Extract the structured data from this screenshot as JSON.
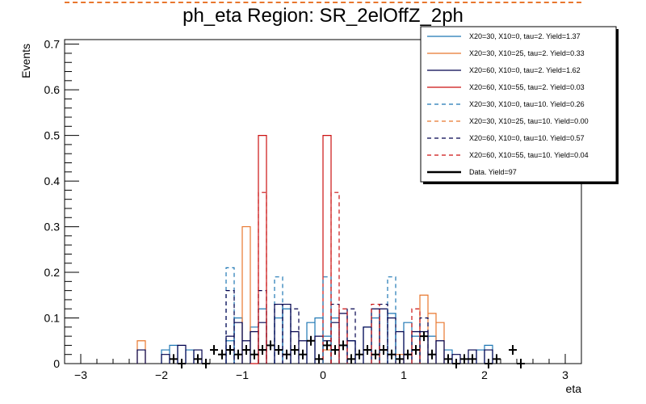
{
  "chart_data": {
    "type": "histogram-step",
    "title": "ph_eta Region: SR_2elOffZ_2ph",
    "xlabel": "eta",
    "ylabel": "Events",
    "xlim": [
      -3.2,
      3.2
    ],
    "ylim": [
      0,
      0.71
    ],
    "xticks": [
      -3,
      -2,
      -1,
      0,
      1,
      2,
      3
    ],
    "yticks": [
      0,
      0.1,
      0.2,
      0.3,
      0.4,
      0.5,
      0.6,
      0.7
    ],
    "ytick_labels": [
      "0",
      "0.1",
      "0.2",
      "0.3",
      "0.4",
      "0.5",
      "0.6",
      "0.7"
    ],
    "bin_width": 0.1,
    "legend_position": "top-right",
    "series": [
      {
        "name": "X20=30, X10=0, tau=2. Yield=1.37",
        "color": "#1f77b4",
        "dash": "solid",
        "bins": [
          [
            -2.0,
            0.03
          ],
          [
            -1.9,
            0.04
          ],
          [
            -1.7,
            0.03
          ],
          [
            -1.2,
            0.05
          ],
          [
            -1.1,
            0.1
          ],
          [
            -0.9,
            0.08
          ],
          [
            -0.8,
            0.12
          ],
          [
            -0.6,
            0.1
          ],
          [
            -0.5,
            0.12
          ],
          [
            -0.2,
            0.09
          ],
          [
            -0.1,
            0.1
          ],
          [
            0.0,
            0.06
          ],
          [
            0.1,
            0.1
          ],
          [
            0.3,
            0.05
          ],
          [
            0.5,
            0.08
          ],
          [
            0.6,
            0.1
          ],
          [
            0.8,
            0.11
          ],
          [
            1.0,
            0.09
          ],
          [
            1.1,
            0.06
          ],
          [
            1.3,
            0.06
          ],
          [
            1.5,
            0.03
          ],
          [
            1.9,
            0.03
          ],
          [
            2.0,
            0.04
          ]
        ]
      },
      {
        "name": "X20=30, X10=25, tau=2. Yield=0.33",
        "color": "#e8772e",
        "dash": "solid",
        "bins": [
          [
            -2.3,
            0.05
          ],
          [
            -1.0,
            0.3
          ],
          [
            -0.9,
            0.02
          ],
          [
            0.0,
            0.03
          ],
          [
            0.9,
            0.02
          ],
          [
            1.2,
            0.15
          ],
          [
            1.3,
            0.11
          ],
          [
            1.4,
            0.09
          ]
        ]
      },
      {
        "name": "X20=60, X10=0, tau=2. Yield=1.62",
        "color": "#00004d",
        "dash": "solid",
        "bins": [
          [
            -2.3,
            0.03
          ],
          [
            -2.0,
            0.02
          ],
          [
            -1.8,
            0.04
          ],
          [
            -1.6,
            0.03
          ],
          [
            -1.2,
            0.06
          ],
          [
            -1.1,
            0.09
          ],
          [
            -1.0,
            0.05
          ],
          [
            -0.9,
            0.07
          ],
          [
            -0.8,
            0.09
          ],
          [
            -0.6,
            0.13
          ],
          [
            -0.5,
            0.13
          ],
          [
            -0.4,
            0.07
          ],
          [
            -0.3,
            0.05
          ],
          [
            -0.1,
            0.06
          ],
          [
            0.0,
            0.05
          ],
          [
            0.1,
            0.09
          ],
          [
            0.2,
            0.11
          ],
          [
            0.3,
            0.05
          ],
          [
            0.5,
            0.08
          ],
          [
            0.6,
            0.12
          ],
          [
            0.7,
            0.12
          ],
          [
            0.8,
            0.1
          ],
          [
            0.9,
            0.07
          ],
          [
            1.1,
            0.07
          ],
          [
            1.2,
            0.07
          ],
          [
            1.4,
            0.05
          ],
          [
            1.6,
            0.02
          ],
          [
            1.8,
            0.03
          ],
          [
            2.0,
            0.03
          ]
        ]
      },
      {
        "name": "X20=60, X10=55, tau=2. Yield=0.03",
        "color": "#cc1111",
        "dash": "solid",
        "bins": [
          [
            -0.9,
            0.0
          ],
          [
            -0.8,
            0.5
          ],
          [
            0.0,
            0.5
          ]
        ]
      },
      {
        "name": "X20=30, X10=0, tau=10. Yield=0.26",
        "color": "#1f77b4",
        "dash": "dashed",
        "bins": [
          [
            -1.2,
            0.21
          ],
          [
            -0.6,
            0.19
          ],
          [
            0.0,
            0.19
          ],
          [
            0.8,
            0.19
          ]
        ]
      },
      {
        "name": "X20=30, X10=25, tau=10. Yield=0.00",
        "color": "#e8772e",
        "dash": "dashed",
        "bins": []
      },
      {
        "name": "X20=60, X10=0, tau=10. Yield=0.57",
        "color": "#00004d",
        "dash": "dashed",
        "bins": [
          [
            -1.2,
            0.16
          ],
          [
            -0.8,
            0.16
          ],
          [
            -0.6,
            0.13
          ],
          [
            -0.4,
            0.12
          ],
          [
            0.1,
            0.13
          ],
          [
            0.3,
            0.12
          ],
          [
            0.7,
            0.13
          ],
          [
            1.2,
            0.1
          ]
        ]
      },
      {
        "name": "X20=60, X10=55, tau=10. Yield=0.04",
        "color": "#cc1111",
        "dash": "dashed",
        "bins": [
          [
            -0.8,
            0.375
          ],
          [
            0.1,
            0.375
          ],
          [
            0.2,
            0.12
          ],
          [
            0.6,
            0.13
          ],
          [
            1.1,
            0.12
          ]
        ]
      }
    ],
    "data_series": {
      "name": "Data. Yield=97",
      "color": "#000000",
      "points": [
        [
          -1.85,
          0.01
        ],
        [
          -1.75,
          0.0
        ],
        [
          -1.55,
          0.01
        ],
        [
          -1.45,
          0.0
        ],
        [
          -1.35,
          0.03
        ],
        [
          -1.25,
          0.02
        ],
        [
          -1.15,
          0.03
        ],
        [
          -1.05,
          0.02
        ],
        [
          -0.95,
          0.03
        ],
        [
          -0.85,
          0.02
        ],
        [
          -0.75,
          0.03
        ],
        [
          -0.65,
          0.04
        ],
        [
          -0.55,
          0.03
        ],
        [
          -0.45,
          0.02
        ],
        [
          -0.35,
          0.03
        ],
        [
          -0.25,
          0.02
        ],
        [
          -0.15,
          0.05
        ],
        [
          -0.05,
          0.01
        ],
        [
          0.05,
          0.04
        ],
        [
          0.15,
          0.03
        ],
        [
          0.25,
          0.04
        ],
        [
          0.35,
          0.01
        ],
        [
          0.45,
          0.02
        ],
        [
          0.55,
          0.03
        ],
        [
          0.65,
          0.02
        ],
        [
          0.75,
          0.03
        ],
        [
          0.85,
          0.02
        ],
        [
          0.95,
          0.01
        ],
        [
          1.05,
          0.02
        ],
        [
          1.15,
          0.03
        ],
        [
          1.25,
          0.06
        ],
        [
          1.35,
          0.02
        ],
        [
          1.55,
          0.01
        ],
        [
          1.65,
          0.0
        ],
        [
          1.75,
          0.01
        ],
        [
          1.85,
          0.01
        ],
        [
          2.05,
          0.0
        ],
        [
          2.15,
          0.01
        ],
        [
          2.35,
          0.03
        ],
        [
          2.45,
          0.0
        ]
      ]
    }
  }
}
